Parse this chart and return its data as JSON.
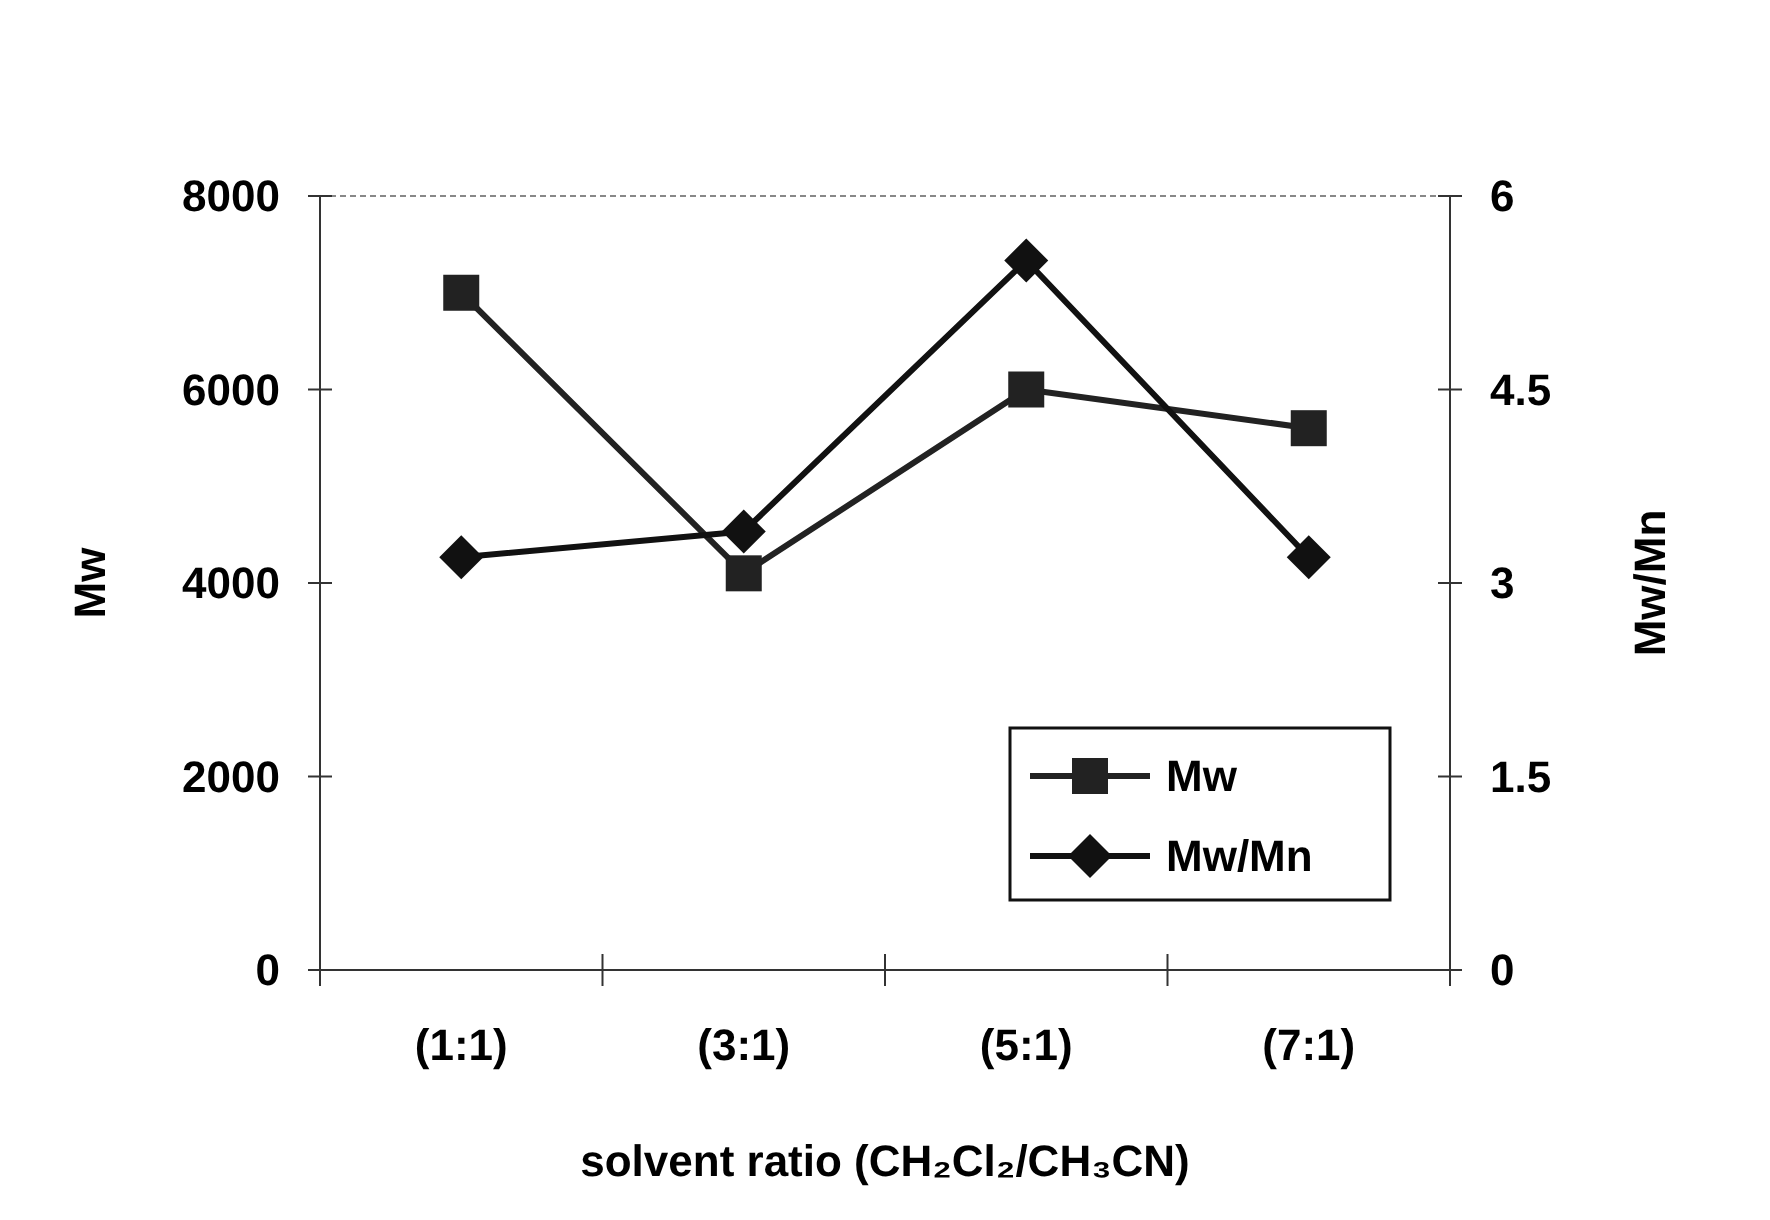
{
  "chart_data": {
    "type": "line",
    "xlabel": "solvent ratio (CH₂Cl₂/CH₃CN)",
    "ylabel": "Mw",
    "y2label": "Mw/Mn",
    "categories": [
      "(1:1)",
      "(3:1)",
      "(5:1)",
      "(7:1)"
    ],
    "series": [
      {
        "name": "Mw",
        "color": "#222222",
        "values": [
          7000,
          4100,
          6000,
          5600
        ],
        "marker": "square"
      },
      {
        "name": "Mw/Mn",
        "color": "#111111",
        "values": [
          3.2,
          3.4,
          5.5,
          3.2
        ],
        "marker": "diamond",
        "axis": "y2"
      }
    ],
    "ylim": [
      0,
      8000
    ],
    "yticks": [
      0,
      2000,
      4000,
      6000,
      8000
    ],
    "y2lim": [
      0,
      6
    ],
    "y2ticks": [
      0,
      1.5,
      3,
      4.5,
      6
    ],
    "legend": "bottom right",
    "grid": false,
    "line_style": "solid"
  }
}
